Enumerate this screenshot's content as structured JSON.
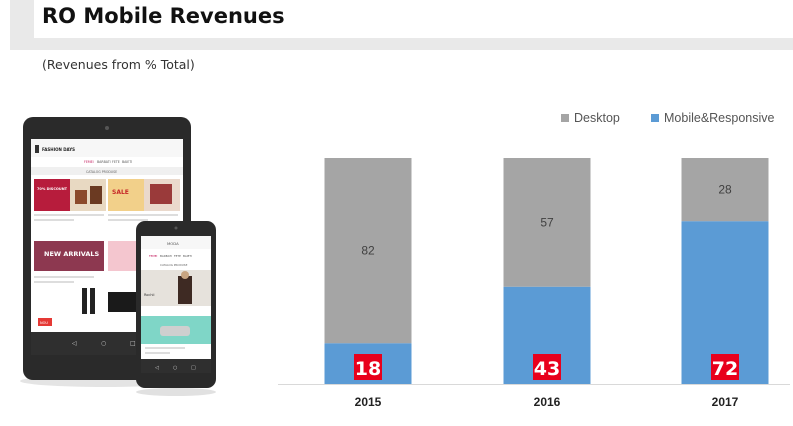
{
  "header": {
    "title": "RO Mobile Revenues",
    "subtitle": "(Revenues from % Total)"
  },
  "colors": {
    "desktop": "#a5a5a5",
    "mobile": "#5b9bd5",
    "highlight": "#e8001c"
  },
  "device_mockup": {
    "brand": "FASHION DAYS",
    "tablet_tabs": [
      "FEMEI",
      "BARBATI",
      "FETE",
      "BAIETI"
    ],
    "tablet_catalog_heading": "CATALOG PRODUSE",
    "tablet_promo": "70% DISCOUNT",
    "tablet_sale": "SALE",
    "tablet_banner": "NEW ARRIVALS",
    "tablet_badge": "NOU",
    "phone_app_title": "MODA",
    "phone_tabs": [
      "FEMEI",
      "BARBATI",
      "FETE",
      "BAIETI"
    ],
    "phone_catalog_heading": "CATALOG PRODUSE",
    "phone_item_label": "Rochii"
  },
  "chart_data": {
    "type": "bar",
    "stacked": true,
    "categories": [
      "2015",
      "2016",
      "2017"
    ],
    "series": [
      {
        "name": "Mobile&Responsive",
        "values": [
          18,
          43,
          72
        ]
      },
      {
        "name": "Desktop",
        "values": [
          82,
          57,
          28
        ]
      }
    ],
    "ylim": [
      0,
      100
    ],
    "legend_position": "top-right",
    "grid": false
  }
}
